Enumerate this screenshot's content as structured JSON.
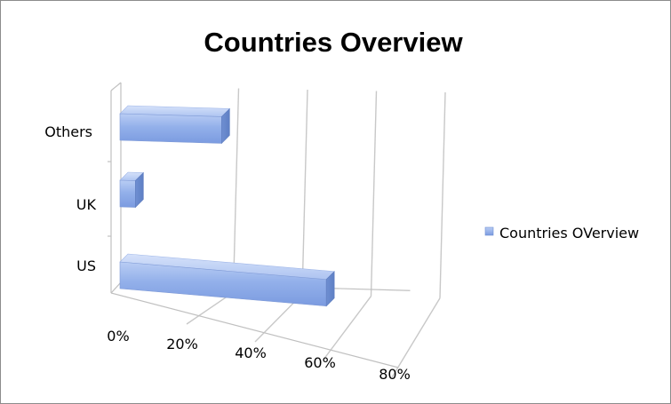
{
  "chart_data": {
    "type": "bar",
    "orientation": "horizontal",
    "style": "3d",
    "title": "Countries Overview",
    "categories": [
      "US",
      "UK",
      "Others"
    ],
    "series": [
      {
        "name": "Countries OVerview",
        "values": [
          0.67,
          0.05,
          0.33
        ],
        "color": "#8eaae6"
      }
    ],
    "x_ticks": [
      "0%",
      "20%",
      "40%",
      "60%",
      "80%"
    ],
    "xlim": [
      0,
      0.8
    ],
    "xlabel": "",
    "ylabel": "",
    "grid": true,
    "legend_position": "right"
  }
}
